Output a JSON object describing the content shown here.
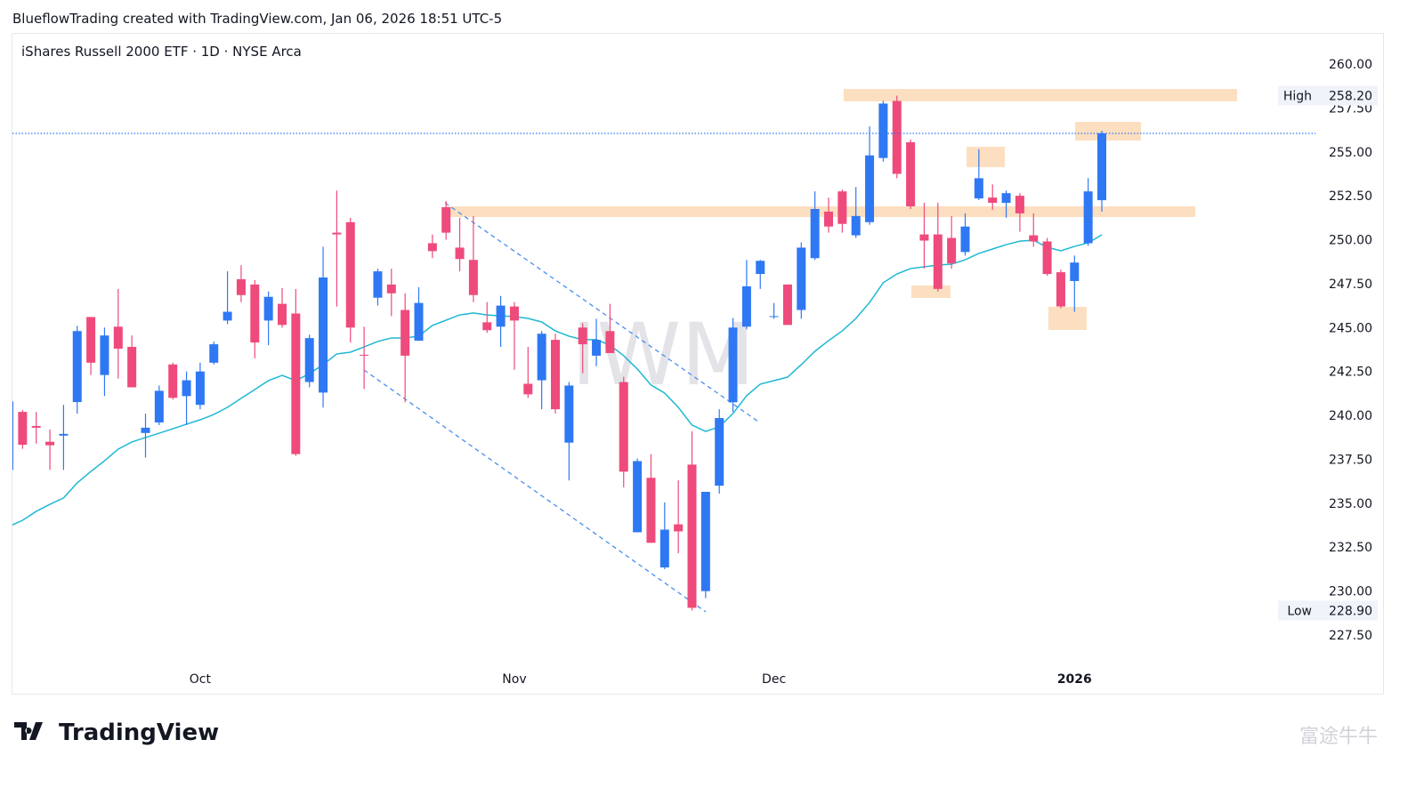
{
  "header": "BlueflowTrading created with TradingView.com, Jan 06, 2026 18:51 UTC-5",
  "brand": "TradingView",
  "brand_watermark": "富途牛牛",
  "chart_data": {
    "type": "candlestick",
    "title": "iShares Russell 2000 ETF · 1D · NYSE Arca",
    "watermark": "IWM",
    "up_color": "#2f78f4",
    "down_color": "#ef4a7c",
    "categories": [
      null,
      null,
      null,
      null,
      null,
      null,
      null,
      null,
      null,
      null,
      null,
      null,
      null,
      null,
      "Oct",
      null,
      null,
      null,
      null,
      null,
      null,
      null,
      null,
      null,
      null,
      null,
      null,
      null,
      null,
      null,
      null,
      null,
      null,
      null,
      null,
      null,
      null,
      "Nov",
      null,
      null,
      null,
      null,
      null,
      null,
      null,
      null,
      null,
      null,
      null,
      null,
      null,
      null,
      null,
      null,
      null,
      null,
      "Dec",
      null,
      null,
      null,
      null,
      null,
      null,
      null,
      null,
      null,
      null,
      null,
      null,
      null,
      null,
      null,
      null,
      null,
      null,
      null,
      null,
      null,
      "2026",
      null,
      null
    ],
    "open": [
      236.9,
      240.2,
      239.4,
      238.5,
      238.85,
      240.76,
      245.6,
      242.3,
      245.05,
      243.9,
      239.0,
      239.6,
      242.9,
      241.1,
      240.6,
      243.0,
      245.4,
      247.75,
      247.45,
      245.4,
      246.35,
      245.8,
      241.9,
      241.3,
      250.4,
      251.0,
      243.45,
      246.7,
      247.45,
      246.0,
      244.25,
      249.8,
      251.85,
      249.55,
      248.85,
      245.3,
      245.05,
      246.2,
      241.8,
      242.0,
      244.3,
      238.45,
      245.0,
      243.4,
      244.8,
      241.9,
      233.35,
      236.45,
      231.35,
      233.8,
      237.2,
      230.0,
      236.0,
      240.75,
      245.05,
      248.05,
      245.6,
      247.45,
      246.0,
      248.95,
      251.6,
      252.75,
      250.25,
      251.0,
      254.65,
      257.9,
      255.55,
      250.3,
      250.3,
      250.1,
      249.3,
      252.35,
      252.4,
      252.1,
      252.5,
      250.25,
      249.9,
      248.15,
      247.65,
      249.8,
      252.25
    ],
    "high": [
      240.8,
      240.3,
      240.2,
      239.2,
      240.6,
      245.1,
      245.6,
      245.0,
      247.2,
      244.55,
      240.1,
      241.7,
      243.0,
      242.5,
      243.0,
      244.2,
      248.2,
      248.55,
      247.7,
      247.05,
      247.25,
      247.2,
      244.6,
      249.6,
      252.8,
      251.25,
      245.05,
      248.35,
      248.35,
      246.95,
      247.3,
      250.3,
      252.2,
      251.25,
      251.35,
      246.45,
      246.8,
      246.45,
      243.9,
      244.8,
      244.65,
      241.9,
      245.25,
      245.5,
      246.35,
      242.2,
      237.55,
      237.8,
      235.05,
      236.3,
      239.1,
      235.65,
      240.35,
      245.55,
      248.85,
      248.85,
      246.4,
      247.45,
      249.85,
      252.75,
      252.4,
      252.85,
      253.0,
      256.45,
      257.9,
      258.2,
      255.7,
      252.1,
      252.1,
      251.35,
      251.5,
      255.15,
      253.15,
      252.8,
      252.65,
      251.5,
      250.1,
      248.3,
      249.1,
      253.5,
      256.2
    ],
    "low": [
      236.9,
      238.1,
      238.4,
      236.9,
      236.9,
      240.1,
      242.3,
      241.1,
      242.1,
      241.6,
      237.6,
      239.45,
      240.9,
      239.45,
      240.35,
      242.9,
      245.2,
      246.45,
      243.25,
      244.0,
      245.0,
      237.7,
      241.6,
      240.45,
      246.2,
      244.15,
      241.5,
      246.25,
      245.65,
      240.75,
      244.25,
      248.95,
      250.0,
      248.2,
      246.45,
      244.7,
      243.9,
      242.6,
      241.0,
      240.35,
      240.1,
      236.3,
      242.4,
      242.8,
      243.55,
      235.9,
      233.35,
      232.75,
      231.25,
      232.15,
      228.9,
      229.6,
      235.55,
      240.2,
      244.9,
      247.2,
      245.5,
      245.15,
      245.5,
      248.85,
      250.4,
      250.4,
      250.1,
      250.85,
      254.45,
      253.5,
      251.75,
      248.35,
      247.05,
      248.35,
      249.1,
      252.25,
      251.7,
      251.25,
      250.45,
      249.6,
      247.95,
      246.1,
      245.9,
      249.65,
      251.6
    ],
    "close": [
      240.8,
      238.33,
      239.3,
      238.3,
      238.95,
      244.8,
      243.0,
      244.55,
      243.8,
      241.6,
      239.3,
      241.4,
      241.0,
      242.0,
      242.5,
      244.05,
      245.9,
      246.85,
      244.15,
      246.75,
      245.15,
      237.8,
      244.4,
      247.85,
      250.3,
      245.0,
      243.4,
      248.2,
      246.95,
      243.4,
      246.4,
      249.35,
      250.4,
      248.9,
      246.85,
      244.85,
      246.25,
      245.4,
      241.2,
      244.65,
      240.35,
      241.7,
      244.05,
      244.3,
      243.55,
      236.8,
      237.4,
      232.75,
      233.5,
      233.4,
      229.05,
      235.65,
      239.85,
      245.0,
      247.35,
      248.8,
      245.65,
      245.15,
      249.55,
      251.75,
      250.75,
      250.9,
      251.35,
      254.8,
      257.75,
      253.75,
      251.9,
      249.95,
      247.2,
      248.65,
      250.75,
      253.5,
      252.1,
      252.65,
      251.5,
      249.9,
      248.05,
      246.2,
      248.7,
      252.75,
      256.05
    ],
    "ma": {
      "color": "#1fb8d4",
      "values": [
        233.68,
        234.03,
        234.54,
        234.94,
        235.3,
        236.16,
        236.81,
        237.42,
        238.08,
        238.49,
        238.74,
        238.99,
        239.24,
        239.5,
        239.75,
        240.05,
        240.46,
        240.97,
        241.47,
        241.98,
        242.28,
        241.98,
        242.38,
        242.89,
        243.5,
        243.6,
        243.9,
        244.21,
        244.41,
        244.41,
        244.51,
        245.12,
        245.42,
        245.72,
        245.83,
        245.72,
        245.67,
        245.62,
        245.52,
        245.32,
        244.81,
        244.51,
        244.31,
        244.31,
        244.0,
        243.4,
        242.64,
        241.73,
        241.27,
        240.46,
        239.45,
        239.09,
        239.35,
        240.11,
        241.12,
        241.78,
        241.98,
        242.18,
        242.89,
        243.65,
        244.26,
        244.81,
        245.52,
        246.43,
        247.55,
        248.05,
        248.36,
        248.46,
        248.56,
        248.61,
        248.86,
        249.22,
        249.47,
        249.72,
        249.92,
        249.97,
        249.57,
        249.37,
        249.62,
        249.82,
        250.28
      ]
    },
    "ylim": [
      224.16,
      261.72
    ],
    "yticks": [
      {
        "value": 227.5,
        "label": "227.50"
      },
      {
        "value": 230,
        "label": "230.00"
      },
      {
        "value": 232.5,
        "label": "232.50"
      },
      {
        "value": 235,
        "label": "235.00"
      },
      {
        "value": 237.5,
        "label": "237.50"
      },
      {
        "value": 240,
        "label": "240.00"
      },
      {
        "value": 242.5,
        "label": "242.50"
      },
      {
        "value": 245,
        "label": "245.00"
      },
      {
        "value": 247.5,
        "label": "247.50"
      },
      {
        "value": 250,
        "label": "250.00"
      },
      {
        "value": 252.5,
        "label": "252.50"
      },
      {
        "value": 255,
        "label": "255.00"
      },
      {
        "value": 257.5,
        "label": "257.50"
      },
      {
        "value": 260,
        "label": "260.00"
      }
    ],
    "high_marker": {
      "name": "High",
      "value": 258.2,
      "label": "258.20"
    },
    "low_marker": {
      "name": "Low",
      "value": 228.9,
      "label": "228.90"
    },
    "grid": false
  }
}
